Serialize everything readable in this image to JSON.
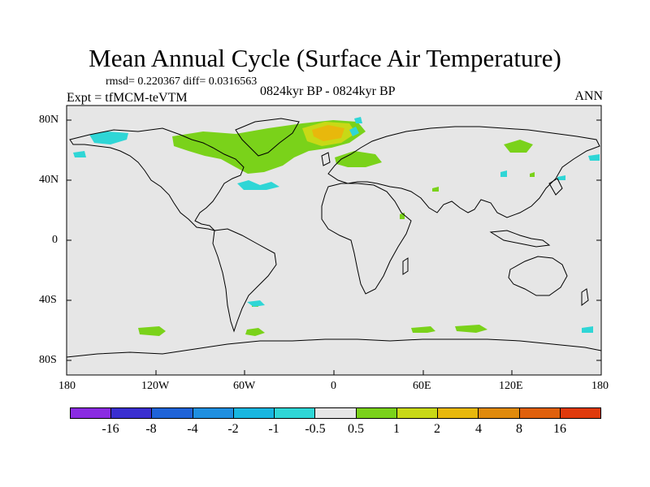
{
  "title": "Mean Annual Cycle (Surface Air Temperature)",
  "stats": "rmsd= 0.220367 diff= 0.0316563",
  "expt": "Expt = tfMCM-teVTM",
  "period": "0824kyr BP - 0824kyr BP",
  "season": "ANN",
  "lat_labels": [
    "80N",
    "40N",
    "0",
    "40S",
    "80S"
  ],
  "lon_labels": [
    "180",
    "120W",
    "60W",
    "0",
    "60E",
    "120E",
    "180"
  ],
  "colorbar": {
    "colors": [
      "#8a2be2",
      "#3a2fd0",
      "#1f63d8",
      "#1f8fe0",
      "#18b6e0",
      "#2fd6d6",
      "#e6e6e6",
      "#7ad21a",
      "#c8d916",
      "#e8b80c",
      "#e08a0c",
      "#e0600c",
      "#e03a0c"
    ],
    "labels": [
      "-16",
      "-8",
      "-4",
      "-2",
      "-1",
      "-0.5",
      "0.5",
      "1",
      "2",
      "4",
      "8",
      "16"
    ]
  },
  "palette": {
    "ocean": "#e6e6e6",
    "green": "#7ad21a",
    "yellow": "#c8d916",
    "orange": "#e8b80c",
    "cyan": "#2fd6d6",
    "coast": "#000000"
  }
}
